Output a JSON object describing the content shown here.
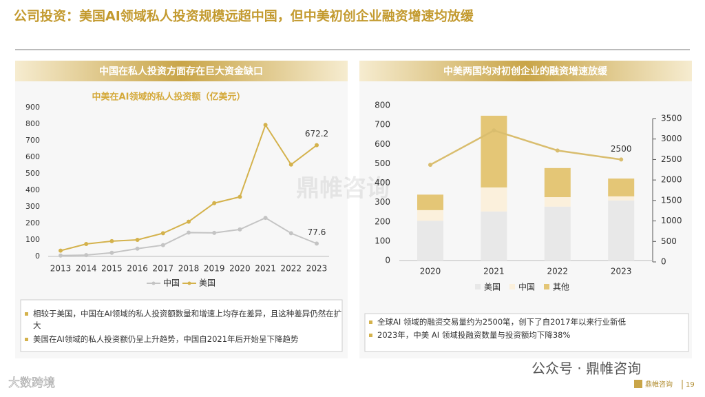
{
  "page": {
    "title": "公司投资：美国AI领域私人投资规模远超中国，但中美初创企业融资增速均放缓",
    "left_header": "中国在私人投资方面存在巨大资金缺口",
    "right_header": "中美两国均对初创企业的融资增速放缓",
    "left_notes": [
      "相较于美国，中国在AI领域的私人投资额数量和增速上均存在差异，且这种差异仍然在扩大",
      "美国在AI领域的私人投资额仍呈上升趋势，中国自2021年后开始呈下降趋势"
    ],
    "right_notes": [
      "全球AI 领域的融资交易量约为2500笔，创下了自2017年以来行业新低",
      "2023年，中美 AI 领域投融资数量与投资额均下降38%"
    ],
    "watermark": "鼎帷咨询",
    "wechat": "公众号 · 鼎帷咨询",
    "corner": "大数跨境",
    "footer_brand": "鼎帷咨询",
    "page_number": "19"
  },
  "chart_data": [
    {
      "type": "line",
      "title": "中美在AI领域的私人投资额（亿美元）",
      "categories": [
        "2013",
        "2014",
        "2015",
        "2016",
        "2017",
        "2018",
        "2019",
        "2020",
        "2021",
        "2022",
        "2023"
      ],
      "series": [
        {
          "name": "中国",
          "color": "#c4c4c4",
          "values": [
            5,
            8,
            22,
            47,
            68,
            144,
            142,
            163,
            233,
            140,
            77.6
          ]
        },
        {
          "name": "美国",
          "color": "#d4b24c",
          "values": [
            35,
            75,
            92,
            100,
            140,
            210,
            322,
            360,
            795,
            555,
            672.2
          ]
        }
      ],
      "ylim": [
        0,
        900
      ],
      "yticks": [
        0,
        100,
        200,
        300,
        400,
        500,
        600,
        700,
        800,
        900
      ],
      "grid": false
    },
    {
      "type": "bar",
      "stacked": true,
      "categories": [
        "2020",
        "2021",
        "2022",
        "2023"
      ],
      "series": [
        {
          "name": "美国",
          "color": "#e8e8e8",
          "values": [
            205,
            253,
            278,
            310
          ]
        },
        {
          "name": "中国",
          "color": "#fbf0dc",
          "values": [
            55,
            124,
            49,
            21
          ]
        },
        {
          "name": "其他",
          "color": "#e4c676",
          "values": [
            80,
            370,
            150,
            92
          ]
        },
        {
          "type": "line",
          "axis": "y2",
          "color": "#d9bd6e",
          "values": [
            2370,
            3210,
            2720,
            2500
          ]
        }
      ],
      "ylim": [
        0,
        800
      ],
      "yticks": [
        0,
        100,
        200,
        300,
        400,
        500,
        600,
        700,
        800
      ],
      "y2lim": [
        0,
        3500
      ],
      "y2ticks": [
        0,
        500,
        1000,
        1500,
        2000,
        2500,
        3000,
        3500
      ],
      "grid": false
    }
  ]
}
